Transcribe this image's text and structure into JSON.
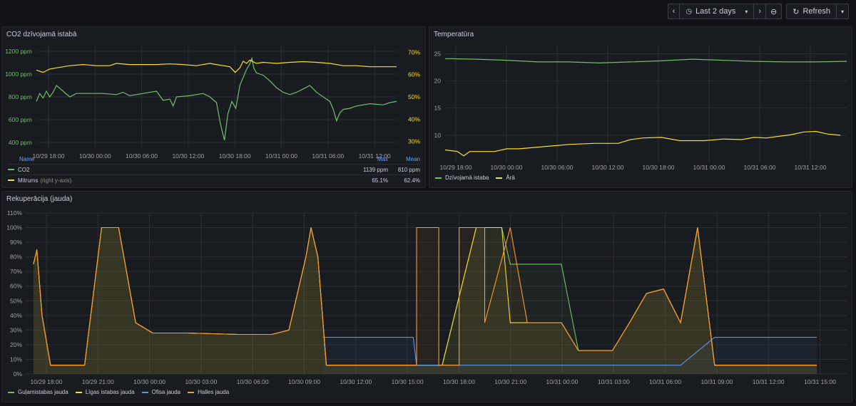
{
  "toolbar": {
    "prev_icon": "chevron-left-icon",
    "time_range": "Last 2 days",
    "zoom_icon": "zoom-out-icon",
    "refresh_label": "Refresh"
  },
  "co2_panel": {
    "title": "CO2 dzīvojamā istabā",
    "legend_header": {
      "name": "Name",
      "max": "Max",
      "mean": "Mean"
    },
    "legend_rows": [
      {
        "name": "CO2",
        "suffix": "",
        "max": "1139 ppm",
        "mean": "810 ppm",
        "color": "#73bf69"
      },
      {
        "name": "Mitrums",
        "suffix": "(right y-axis)",
        "max": "65.1%",
        "mean": "62.4%",
        "color": "#fade2a"
      }
    ]
  },
  "temp_panel": {
    "title": "Temperatūra",
    "legend": [
      {
        "name": "Dzīvojamā istaba",
        "color": "#73bf69"
      },
      {
        "name": "Ārā",
        "color": "#fade2a"
      }
    ]
  },
  "rek_panel": {
    "title": "Rekuperācija (jauda)",
    "legend": [
      {
        "name": "Guļamistabas jauda",
        "color": "#73bf69"
      },
      {
        "name": "Līgas istabas jauda",
        "color": "#fade2a"
      },
      {
        "name": "Ofisa jauda",
        "color": "#5794f2"
      },
      {
        "name": "Halles jauda",
        "color": "#ff9830"
      }
    ]
  },
  "chart_data": [
    {
      "type": "line",
      "title": "CO2 dzīvojamā istabā",
      "x_ticks": [
        "10/29 18:00",
        "10/30 00:00",
        "10/30 06:00",
        "10/30 12:00",
        "10/30 18:00",
        "10/31 00:00",
        "10/31 06:00",
        "10/31 12:00"
      ],
      "x_range_hours": [
        0,
        46.5
      ],
      "y_left_ticks": [
        "400 ppm",
        "600 ppm",
        "800 ppm",
        "1000 ppm",
        "1200 ppm"
      ],
      "y_left_range": [
        350,
        1250
      ],
      "y_right_ticks": [
        "30%",
        "40%",
        "50%",
        "60%",
        "70%"
      ],
      "y_right_range": [
        27,
        73
      ],
      "series": [
        {
          "name": "CO2",
          "axis": "left",
          "color": "#73bf69",
          "points": [
            [
              0,
              760
            ],
            [
              0.5,
              830
            ],
            [
              1,
              790
            ],
            [
              1.5,
              850
            ],
            [
              2,
              800
            ],
            [
              2.5,
              840
            ],
            [
              3,
              900
            ],
            [
              4,
              850
            ],
            [
              5,
              800
            ],
            [
              6,
              830
            ],
            [
              8,
              830
            ],
            [
              10,
              830
            ],
            [
              12,
              820
            ],
            [
              13,
              840
            ],
            [
              14,
              810
            ],
            [
              16,
              830
            ],
            [
              18,
              850
            ],
            [
              19,
              770
            ],
            [
              20,
              780
            ],
            [
              20.5,
              720
            ],
            [
              21,
              800
            ],
            [
              23,
              810
            ],
            [
              25,
              830
            ],
            [
              26,
              800
            ],
            [
              27,
              750
            ],
            [
              27.6,
              560
            ],
            [
              28.2,
              420
            ],
            [
              28.7,
              650
            ],
            [
              29.3,
              760
            ],
            [
              29.9,
              700
            ],
            [
              30.5,
              900
            ],
            [
              31,
              970
            ],
            [
              31.5,
              1040
            ],
            [
              32,
              1090
            ],
            [
              32.3,
              1139
            ],
            [
              32.6,
              1050
            ],
            [
              33,
              1010
            ],
            [
              34,
              990
            ],
            [
              35,
              940
            ],
            [
              36,
              880
            ],
            [
              37,
              840
            ],
            [
              38,
              820
            ],
            [
              39,
              840
            ],
            [
              40,
              870
            ],
            [
              41,
              900
            ],
            [
              42,
              840
            ],
            [
              43,
              800
            ],
            [
              44,
              760
            ],
            [
              44.5,
              690
            ],
            [
              45,
              590
            ],
            [
              45.5,
              660
            ],
            [
              46,
              690
            ],
            [
              47,
              700
            ],
            [
              48,
              720
            ],
            [
              50,
              740
            ],
            [
              52,
              730
            ],
            [
              53,
              750
            ],
            [
              54,
              760
            ]
          ]
        },
        {
          "name": "Mitrums",
          "axis": "right",
          "color": "#fade2a",
          "points": [
            [
              0,
              62
            ],
            [
              1,
              61
            ],
            [
              2,
              62.5
            ],
            [
              3,
              63
            ],
            [
              5,
              64
            ],
            [
              7,
              64.5
            ],
            [
              9,
              64
            ],
            [
              11,
              64
            ],
            [
              12,
              65
            ],
            [
              14,
              64.5
            ],
            [
              16,
              64.5
            ],
            [
              18,
              64.5
            ],
            [
              20,
              64.8
            ],
            [
              22,
              64.5
            ],
            [
              24,
              64
            ],
            [
              26,
              65
            ],
            [
              27,
              64.5
            ],
            [
              28,
              64
            ],
            [
              29,
              63.5
            ],
            [
              29.8,
              61
            ],
            [
              30.5,
              63
            ],
            [
              31,
              66
            ],
            [
              31.5,
              65
            ],
            [
              32,
              66.5
            ],
            [
              33,
              65
            ],
            [
              34,
              65.5
            ],
            [
              36,
              65
            ],
            [
              38,
              65.5
            ],
            [
              40,
              65.8
            ],
            [
              42,
              65.5
            ],
            [
              44,
              65
            ],
            [
              46,
              64
            ],
            [
              48,
              64
            ],
            [
              50,
              63.5
            ],
            [
              52,
              63.5
            ],
            [
              54,
              63.5
            ]
          ]
        }
      ]
    },
    {
      "type": "line",
      "title": "Temperatūra",
      "x_ticks": [
        "10/29 18:00",
        "10/30 00:00",
        "10/30 06:00",
        "10/30 12:00",
        "10/30 18:00",
        "10/31 00:00",
        "10/31 06:00",
        "10/31 12:00"
      ],
      "y_ticks": [
        "10",
        "15",
        "20",
        "25"
      ],
      "y_range": [
        5,
        26.5
      ],
      "series": [
        {
          "name": "Dzīvojamā istaba",
          "color": "#73bf69",
          "points": [
            [
              0,
              24.1
            ],
            [
              5,
              24
            ],
            [
              10,
              23.8
            ],
            [
              15,
              23.5
            ],
            [
              20,
              23.5
            ],
            [
              25,
              23.3
            ],
            [
              30,
              23.5
            ],
            [
              35,
              23.7
            ],
            [
              40,
              24
            ],
            [
              45,
              23.8
            ],
            [
              50,
              23.6
            ],
            [
              55,
              23.5
            ],
            [
              60,
              23.5
            ],
            [
              65,
              23.6
            ]
          ]
        },
        {
          "name": "Ārā",
          "color": "#fade2a",
          "points": [
            [
              0,
              7.3
            ],
            [
              2,
              7
            ],
            [
              3,
              6.2
            ],
            [
              4,
              7
            ],
            [
              8,
              7
            ],
            [
              10,
              7.5
            ],
            [
              12,
              7.5
            ],
            [
              15,
              7.8
            ],
            [
              18,
              8.1
            ],
            [
              20,
              8.3
            ],
            [
              24,
              8.5
            ],
            [
              28,
              8.5
            ],
            [
              30,
              9.2
            ],
            [
              32,
              9.5
            ],
            [
              35,
              9.6
            ],
            [
              38,
              9
            ],
            [
              42,
              9
            ],
            [
              45,
              9.3
            ],
            [
              48,
              9.2
            ],
            [
              50,
              9.6
            ],
            [
              52,
              9.5
            ],
            [
              54,
              9.8
            ],
            [
              56,
              10.1
            ],
            [
              58,
              10.6
            ],
            [
              60,
              10.7
            ],
            [
              62,
              10.2
            ],
            [
              64,
              10
            ]
          ]
        }
      ]
    },
    {
      "type": "area",
      "title": "Rekuperācija (jauda)",
      "x_ticks": [
        "10/29 18:00",
        "10/29 21:00",
        "10/30 00:00",
        "10/30 03:00",
        "10/30 06:00",
        "10/30 09:00",
        "10/30 12:00",
        "10/30 15:00",
        "10/30 18:00",
        "10/30 21:00",
        "10/31 00:00",
        "10/31 03:00",
        "10/31 06:00",
        "10/31 09:00",
        "10/31 12:00",
        "10/31 15:00"
      ],
      "y_ticks": [
        "0%",
        "10%",
        "20%",
        "30%",
        "40%",
        "50%",
        "60%",
        "70%",
        "80%",
        "90%",
        "100%",
        "110%"
      ],
      "y_range": [
        0,
        110
      ],
      "series": [
        {
          "name": "Guļamistabas jauda",
          "color": "#73bf69",
          "points": [
            [
              -1,
              75
            ],
            [
              -0.8,
              85
            ],
            [
              -0.5,
              40
            ],
            [
              0,
              6
            ],
            [
              2,
              6
            ],
            [
              3,
              100
            ],
            [
              4,
              100
            ],
            [
              5,
              35
            ],
            [
              6,
              28
            ],
            [
              8,
              28
            ],
            [
              11,
              27
            ],
            [
              13,
              27
            ],
            [
              14,
              30
            ],
            [
              15,
              80
            ],
            [
              15.3,
              100
            ],
            [
              15.7,
              80
            ],
            [
              16.2,
              6
            ],
            [
              22,
              6
            ],
            [
              23,
              6
            ],
            [
              25,
              100
            ],
            [
              26.5,
              100
            ],
            [
              27,
              75
            ],
            [
              30,
              75
            ],
            [
              31,
              16
            ],
            [
              33,
              16
            ],
            [
              34,
              35
            ],
            [
              35,
              55
            ],
            [
              36,
              58
            ],
            [
              37,
              35
            ],
            [
              38,
              100
            ],
            [
              39,
              6
            ],
            [
              45,
              6
            ]
          ]
        },
        {
          "name": "Līgas istabas jauda",
          "color": "#fade2a",
          "points": [
            [
              -1,
              75
            ],
            [
              -0.8,
              85
            ],
            [
              -0.5,
              40
            ],
            [
              0,
              6
            ],
            [
              2,
              6
            ],
            [
              3,
              100
            ],
            [
              4,
              100
            ],
            [
              5,
              35
            ],
            [
              6,
              28
            ],
            [
              8,
              28
            ],
            [
              11,
              27
            ],
            [
              13,
              27
            ],
            [
              14,
              30
            ],
            [
              15,
              80
            ],
            [
              15.3,
              100
            ],
            [
              15.7,
              80
            ],
            [
              16.2,
              6
            ],
            [
              22,
              6
            ],
            [
              23,
              6
            ],
            [
              25,
              100
            ],
            [
              26.5,
              100
            ],
            [
              27,
              35
            ],
            [
              30,
              35
            ],
            [
              31,
              16
            ],
            [
              33,
              16
            ],
            [
              34,
              35
            ],
            [
              35,
              55
            ],
            [
              36,
              58
            ],
            [
              37,
              35
            ],
            [
              38,
              100
            ],
            [
              39,
              6
            ],
            [
              45,
              6
            ]
          ]
        },
        {
          "name": "Ofisa jauda",
          "color": "#5794f2",
          "points": [
            [
              16,
              25
            ],
            [
              21.3,
              25
            ],
            [
              21.5,
              6
            ],
            [
              23,
              6
            ],
            [
              37,
              6
            ],
            [
              39,
              25
            ],
            [
              45,
              25
            ]
          ]
        },
        {
          "name": "Halles jauda",
          "color": "#ff9830",
          "points": [
            [
              -1,
              75
            ],
            [
              -0.8,
              85
            ],
            [
              -0.5,
              40
            ],
            [
              0,
              6
            ],
            [
              2,
              6
            ],
            [
              3,
              100
            ],
            [
              4,
              100
            ],
            [
              5,
              35
            ],
            [
              6,
              28
            ],
            [
              8,
              28
            ],
            [
              11,
              27
            ],
            [
              13,
              27
            ],
            [
              14,
              30
            ],
            [
              15,
              80
            ],
            [
              15.3,
              100
            ],
            [
              15.7,
              80
            ],
            [
              16.2,
              6
            ],
            [
              20,
              6
            ],
            [
              21.5,
              6
            ],
            [
              21.5,
              100
            ],
            [
              22.8,
              100
            ],
            [
              22.8,
              6
            ],
            [
              24,
              6
            ],
            [
              24,
              100
            ],
            [
              25.5,
              100
            ],
            [
              25.5,
              35
            ],
            [
              27,
              100
            ],
            [
              28,
              35
            ],
            [
              30,
              35
            ],
            [
              31,
              16
            ],
            [
              33,
              16
            ],
            [
              34,
              35
            ],
            [
              35,
              55
            ],
            [
              36,
              58
            ],
            [
              37,
              35
            ],
            [
              38,
              100
            ],
            [
              39,
              6
            ],
            [
              45,
              6
            ]
          ]
        }
      ]
    }
  ]
}
